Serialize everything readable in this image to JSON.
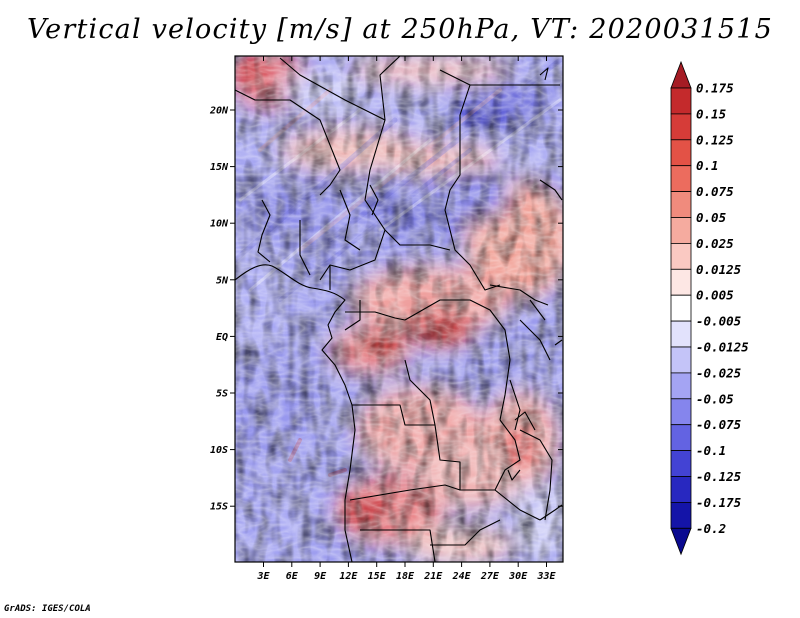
{
  "figure": {
    "title": "Vertical velocity [m/s] at 250hPa, VT: 2020031515",
    "credit": "GrADS: IGES/COLA",
    "longitude_ticks": [
      "3E",
      "6E",
      "9E",
      "12E",
      "15E",
      "18E",
      "21E",
      "24E",
      "27E",
      "30E",
      "33E"
    ],
    "latitude_ticks": [
      "20N",
      "15N",
      "10N",
      "5N",
      "EQ",
      "5S",
      "10S",
      "15S"
    ]
  },
  "colorbar": {
    "levels": [
      "0.175",
      "0.15",
      "0.125",
      "0.1",
      "0.075",
      "0.05",
      "0.025",
      "0.0125",
      "0.005",
      "-0.005",
      "-0.0125",
      "-0.025",
      "-0.05",
      "-0.075",
      "-0.1",
      "-0.125",
      "-0.175",
      "-0.2"
    ],
    "colors": [
      "#a51c24",
      "#c42a2c",
      "#d63c38",
      "#e35246",
      "#ec6c5e",
      "#f08b7d",
      "#f5ab9f",
      "#fac9c2",
      "#fde7e4",
      "#ffffff",
      "#e2e2fc",
      "#c4c4f8",
      "#a4a4f3",
      "#8585ed",
      "#6363e2",
      "#4343d4",
      "#2828c0",
      "#1414a8",
      "#0a0a90"
    ]
  },
  "chart_data": {
    "type": "heatmap",
    "title": "Vertical velocity [m/s] at 250hPa, VT: 2020031515",
    "variable": "Vertical velocity",
    "units": "m/s",
    "level": "250hPa",
    "valid_time": "2020031515",
    "lon_range": [
      0,
      35
    ],
    "lat_range": [
      -20,
      25
    ],
    "x_ticks": [
      "3E",
      "6E",
      "9E",
      "12E",
      "15E",
      "18E",
      "21E",
      "24E",
      "27E",
      "30E",
      "33E"
    ],
    "y_ticks": [
      "20N",
      "15N",
      "10N",
      "5N",
      "EQ",
      "5S",
      "10S",
      "15S"
    ],
    "color_levels": [
      -0.2,
      -0.175,
      -0.125,
      -0.1,
      -0.075,
      -0.05,
      -0.025,
      -0.0125,
      -0.005,
      0.005,
      0.0125,
      0.025,
      0.05,
      0.075,
      0.1,
      0.125,
      0.15,
      0.175
    ]
  }
}
